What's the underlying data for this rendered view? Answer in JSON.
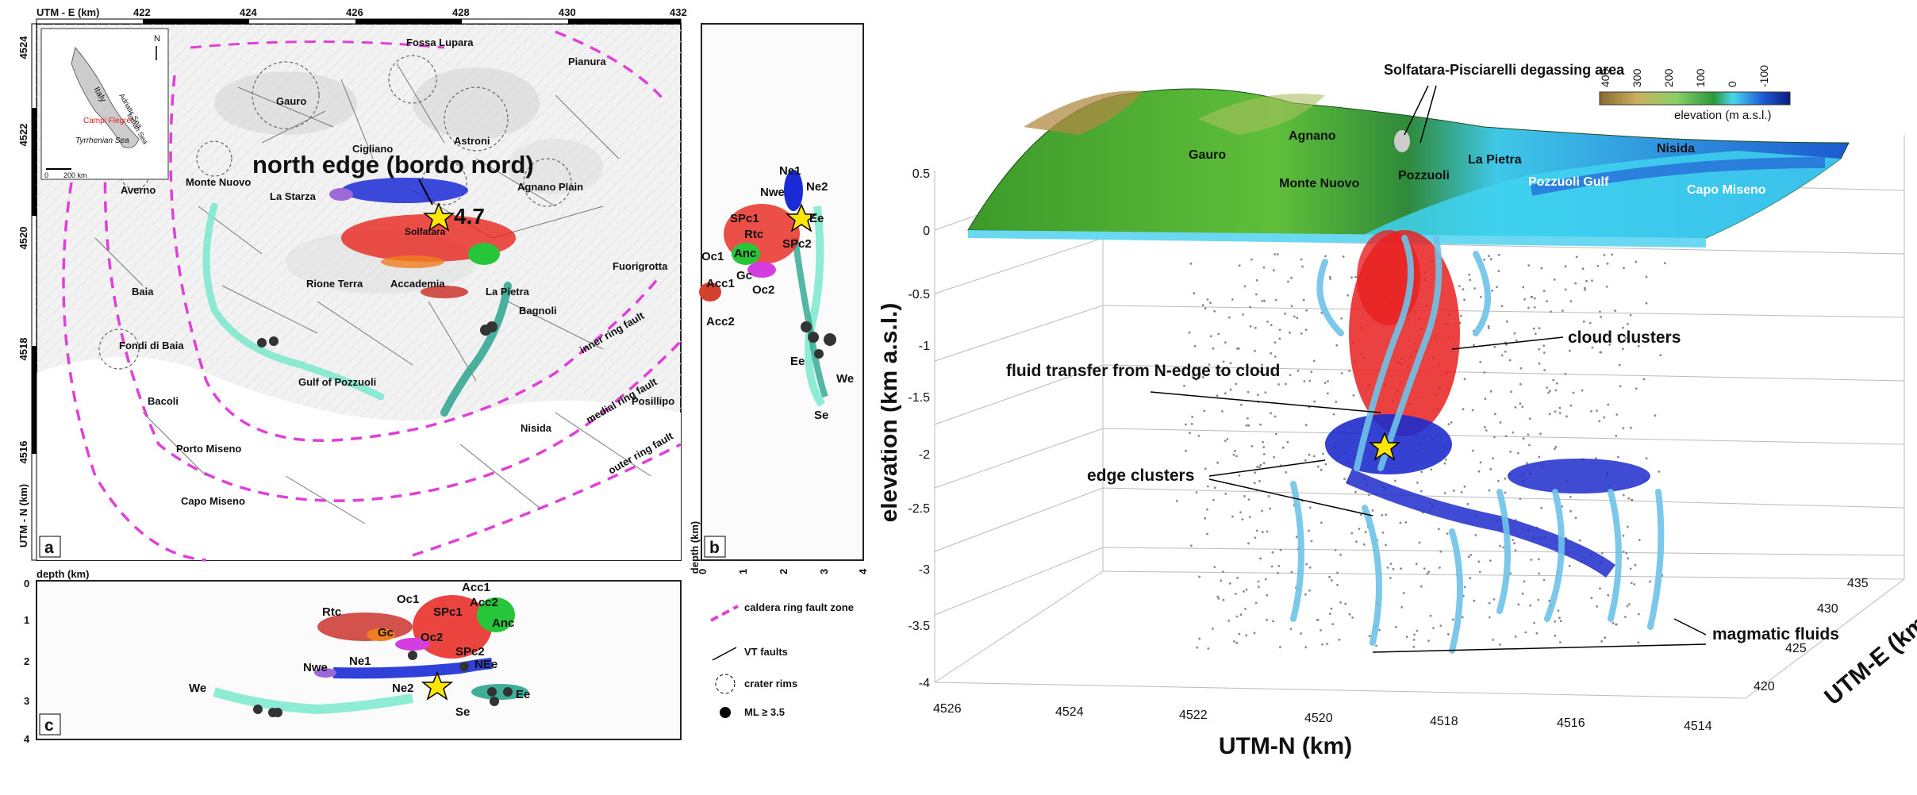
{
  "colors": {
    "ring_fault": "#e040d8",
    "ne1": "#1a2bd6",
    "spc1": "#e8231c",
    "oc": "#b06a2a",
    "rtc": "#c9281f",
    "gc": "#f07e1e",
    "oc2": "#d43ee0",
    "anc": "#27c63a",
    "nwe": "#9b6ad8",
    "we": "#7ae8cc",
    "ee": "#2aa58e",
    "acc": "#d3402c",
    "cloud": "#e82020",
    "edge": "#1e2ccc",
    "fluid": "#6ec3e8",
    "sea": "#3ad7f2"
  },
  "map": {
    "axis_title_x": "UTM - E (km)",
    "axis_title_y": "UTM - N (km)",
    "x_ticks": [
      "422",
      "424",
      "426",
      "428",
      "430",
      "432"
    ],
    "y_ticks": [
      "4524",
      "4522",
      "4520",
      "4518",
      "4516"
    ],
    "panel_a": "a",
    "panel_b": "b",
    "panel_c": "c",
    "headline": "north edge (bordo nord)",
    "magnitude": "4.7",
    "inset": {
      "n": "N",
      "italy": "Italy",
      "adriatic": "Adriatic Sea",
      "tyrrhenian": "Tyrrhenian Sea",
      "ionian": "Ionian Sea",
      "campi": "Campi Flegrei",
      "scale": "0",
      "scale2": "200 km"
    },
    "places": {
      "fossa": "Fossa Lupara",
      "pianura": "Pianura",
      "gauro": "Gauro",
      "astroni": "Astroni",
      "cigliano": "Cigliano",
      "agnano": "Agnano Plain",
      "monte_nuovo": "Monte Nuovo",
      "averno": "Averno",
      "la_starza": "La Starza",
      "solfatara": "Solfatara",
      "fuorigrotta": "Fuorigrotta",
      "baia": "Baia",
      "rione": "Rione Terra",
      "accademia": "Accademia",
      "la_pietra": "La Pietra",
      "bagnoli": "Bagnoli",
      "fondi": "Fondi di Baia",
      "gulf": "Gulf of Pozzuoli",
      "bacoli": "Bacoli",
      "posillipo": "Posillipo",
      "nisida": "Nisida",
      "porto": "Porto Miseno",
      "capo": "Capo Miseno",
      "inner": "inner ring fault",
      "medial": "medial ring fault",
      "outer": "outer ring fault"
    }
  },
  "section_b": {
    "depth_label": "depth (km)",
    "x_ticks": [
      "0",
      "1",
      "2",
      "3",
      "4"
    ],
    "clusters": {
      "ne1": "Ne1",
      "nwe": "Nwe",
      "ne2": "Ne2",
      "spc1": "SPc1",
      "rtc": "Rtc",
      "ee_top": "Ee",
      "oc1": "Oc1",
      "anc": "Anc",
      "spc2": "SPc2",
      "gc": "Gc",
      "acc1": "Acc1",
      "oc2": "Oc2",
      "acc2": "Acc2",
      "ee": "Ee",
      "we": "We",
      "se": "Se"
    }
  },
  "section_c": {
    "depth_label": "depth (km)",
    "y_ticks": [
      "0",
      "1",
      "2",
      "3",
      "4"
    ],
    "clusters": {
      "acc1": "Acc1",
      "oc1": "Oc1",
      "acc2": "Acc2",
      "spc1": "SPc1",
      "rtc": "Rtc",
      "anc": "Anc",
      "gc": "Gc",
      "oc2": "Oc2",
      "spc2": "SPc2",
      "nwe": "Nwe",
      "ne1": "Ne1",
      "nee": "NEe",
      "ne2": "Ne2",
      "ee": "Ee",
      "we": "We",
      "se": "Se"
    }
  },
  "legend": {
    "caldera": "caldera ring fault zone",
    "vt": "VT faults",
    "crater": "crater rims",
    "ml": "ML ≥ 3.5"
  },
  "view3d": {
    "z_title": "elevation (km a.s.l.)",
    "x_title": "UTM-N (km)",
    "y_title": "UTM-E (km)",
    "z_ticks": [
      "0.5",
      "0",
      "-0.5",
      "-1",
      "-1.5",
      "-2",
      "-2.5",
      "-3",
      "-3.5",
      "-4"
    ],
    "x_ticks": [
      "4526",
      "4524",
      "4522",
      "4520",
      "4518",
      "4516",
      "4514"
    ],
    "y_ticks": [
      "435",
      "430",
      "425",
      "420"
    ],
    "colorbar_ticks": [
      "400",
      "300",
      "200",
      "100",
      "0",
      "-100"
    ],
    "colorbar_label": "elevation (m a.s.l.)",
    "terrain_labels": {
      "solfatara": "Solfatara-Pisciarelli degassing area",
      "agnano": "Agnano",
      "gauro": "Gauro",
      "la_pietra": "La Pietra",
      "nisida": "Nisida",
      "monte_nuovo": "Monte Nuovo",
      "pozzuoli": "Pozzuoli",
      "gulf": "Pozzuoli Gulf",
      "capo": "Capo Miseno"
    },
    "annotations": {
      "cloud": "cloud clusters",
      "fluid_transfer": "fluid transfer from N-edge to cloud",
      "edge": "edge clusters",
      "magmatic": "magmatic fluids"
    }
  }
}
